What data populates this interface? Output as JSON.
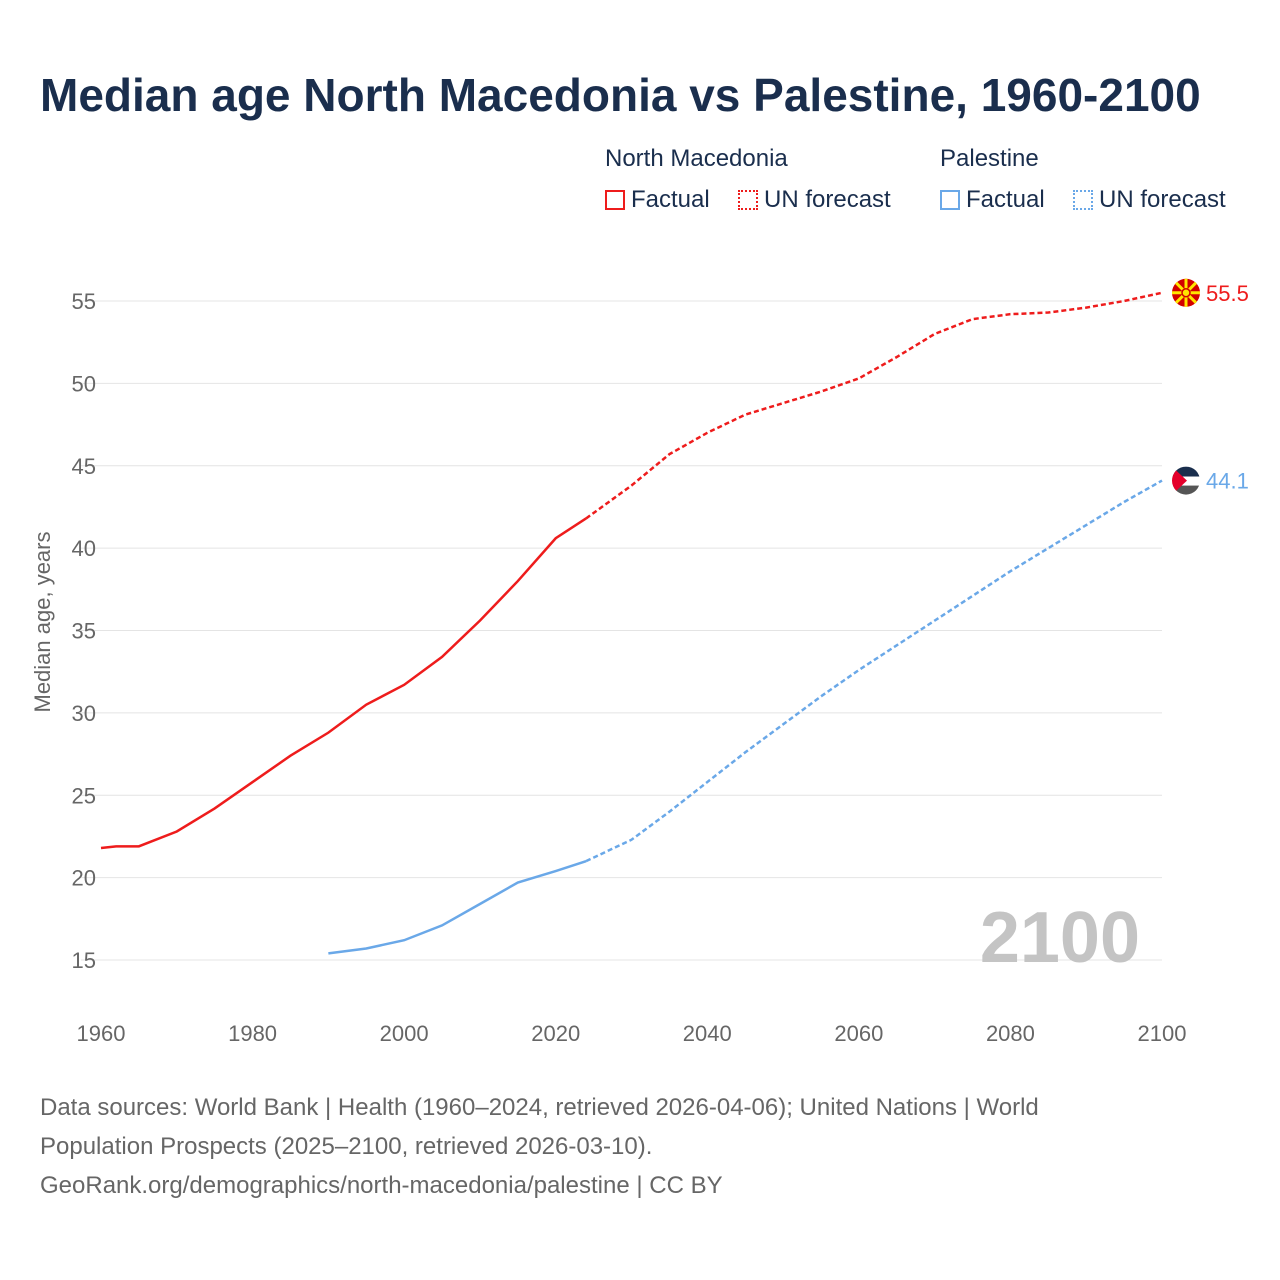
{
  "title": "Median age North Macedonia vs Palestine, 1960-2100",
  "legend": {
    "groups": [
      {
        "name": "North Macedonia",
        "color": "#ee1c1c",
        "factual": "Factual",
        "forecast": "UN forecast"
      },
      {
        "name": "Palestine",
        "color": "#6aa8e8",
        "factual": "Factual",
        "forecast": "UN forecast"
      }
    ]
  },
  "source": {
    "line1": "Data sources: World Bank | Health (1960–2024, retrieved 2026-04-06); United Nations | World",
    "line2": "Population Prospects (2025–2100, retrieved 2026-03-10).",
    "line3": "GeoRank.org/demographics/north-macedonia/palestine | CC BY"
  },
  "chart_data": {
    "type": "line",
    "title": "Median age North Macedonia vs Palestine, 1960-2100",
    "ylabel": "Median age, years",
    "xlabel": "",
    "xlim": [
      1960,
      2100
    ],
    "ylim": [
      15,
      55
    ],
    "xticks": [
      1960,
      1980,
      2000,
      2020,
      2040,
      2060,
      2080,
      2100
    ],
    "yticks": [
      15,
      20,
      25,
      30,
      35,
      40,
      45,
      50,
      55
    ],
    "grid": true,
    "year_watermark": "2100",
    "series": [
      {
        "name": "North Macedonia",
        "color": "#ee1c1c",
        "end_label": "55.5",
        "factual": {
          "x": [
            1960,
            1962,
            1965,
            1970,
            1975,
            1980,
            1985,
            1990,
            1995,
            2000,
            2005,
            2010,
            2015,
            2020,
            2024
          ],
          "y": [
            21.8,
            21.9,
            21.9,
            22.8,
            24.2,
            25.8,
            27.4,
            28.8,
            30.5,
            31.7,
            33.4,
            35.6,
            38.0,
            40.6,
            41.8
          ]
        },
        "forecast": {
          "x": [
            2024,
            2030,
            2035,
            2040,
            2045,
            2050,
            2055,
            2060,
            2065,
            2070,
            2075,
            2080,
            2085,
            2090,
            2095,
            2100
          ],
          "y": [
            41.8,
            43.8,
            45.7,
            47.0,
            48.1,
            48.8,
            49.5,
            50.3,
            51.6,
            53.0,
            53.9,
            54.2,
            54.3,
            54.6,
            55.0,
            55.5
          ]
        }
      },
      {
        "name": "Palestine",
        "color": "#6aa8e8",
        "end_label": "44.1",
        "factual": {
          "x": [
            1990,
            1995,
            2000,
            2005,
            2010,
            2015,
            2020,
            2024
          ],
          "y": [
            15.4,
            15.7,
            16.2,
            17.1,
            18.4,
            19.7,
            20.4,
            21.0
          ]
        },
        "forecast": {
          "x": [
            2024,
            2030,
            2035,
            2040,
            2045,
            2050,
            2055,
            2060,
            2065,
            2070,
            2075,
            2080,
            2085,
            2090,
            2095,
            2100
          ],
          "y": [
            21.0,
            22.3,
            24.0,
            25.8,
            27.6,
            29.3,
            31.0,
            32.6,
            34.1,
            35.6,
            37.1,
            38.6,
            40.0,
            41.4,
            42.8,
            44.1
          ]
        }
      }
    ]
  }
}
